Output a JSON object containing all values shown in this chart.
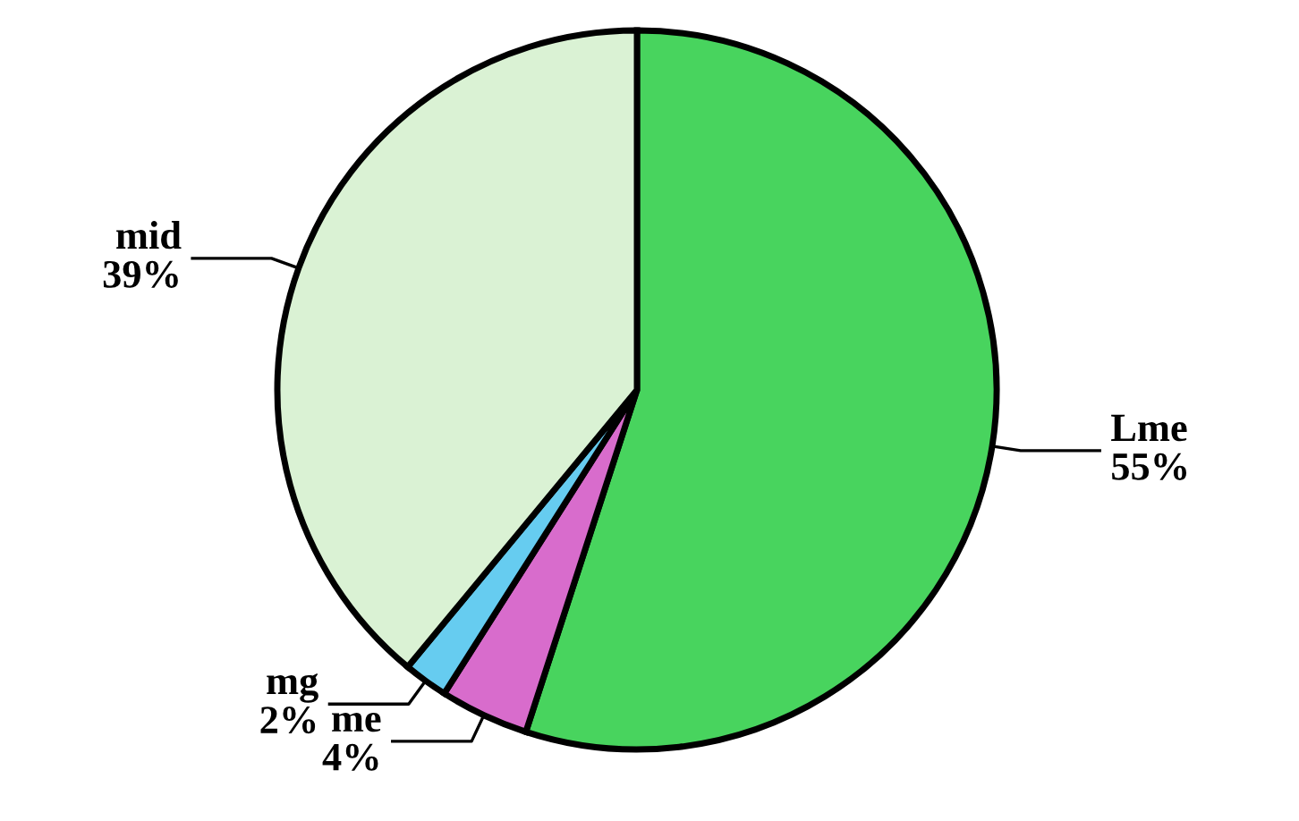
{
  "chart_data": {
    "type": "pie",
    "categories": [
      "Lme",
      "me",
      "mg",
      "mid"
    ],
    "values": [
      55,
      4,
      2,
      39
    ],
    "value_labels": [
      "55%",
      "4%",
      "2%",
      "39%"
    ],
    "colors": [
      "#48d45e",
      "#d86ccc",
      "#66ccf0",
      "#daf2d4"
    ]
  }
}
